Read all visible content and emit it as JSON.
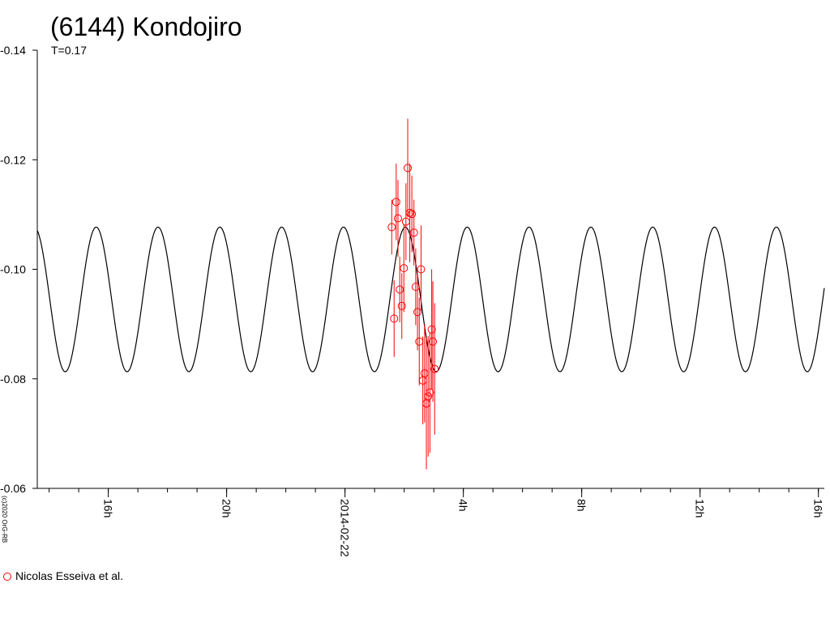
{
  "chart_data": {
    "type": "scatter",
    "title": "(6144) Kondojiro",
    "subtitle": "T=0.17",
    "copyright": "(c)2020 OrG-RB",
    "y_axis": {
      "range": [
        -0.06,
        -0.14
      ],
      "inverted": true,
      "ticks": [
        -0.14,
        -0.12,
        -0.1,
        -0.08,
        -0.06
      ],
      "tick_labels": [
        "-0.14",
        "-0.12",
        "-0.10",
        "-0.08",
        "-0.06"
      ]
    },
    "x_axis": {
      "unit": "hours relative to 2014-02-22 00:00",
      "range": [
        13.6,
        40.2
      ],
      "major_ticks": [
        16,
        20,
        24,
        28,
        32,
        36,
        40
      ],
      "major_labels": [
        "16h",
        "20h",
        "2014-02-22",
        "4h",
        "8h",
        "12h",
        "16h"
      ],
      "minor_step": 1
    },
    "model_curve": {
      "mean": -0.0945,
      "amplitude": 0.0132,
      "period_hours": 2.09,
      "phase_peak_hour": 26.04,
      "x_range": [
        13.6,
        40.2
      ]
    },
    "series": [
      {
        "name": "Nicolas Esseiva et al.",
        "color": "#ff0000",
        "points": [
          {
            "x": 25.58,
            "y": -0.1077,
            "err": 0.005
          },
          {
            "x": 25.66,
            "y": -0.091,
            "err": 0.007
          },
          {
            "x": 25.73,
            "y": -0.1123,
            "err": 0.007
          },
          {
            "x": 25.79,
            "y": -0.1093,
            "err": 0.007
          },
          {
            "x": 25.85,
            "y": -0.0963,
            "err": 0.006
          },
          {
            "x": 25.92,
            "y": -0.0933,
            "err": 0.006
          },
          {
            "x": 25.99,
            "y": -0.1002,
            "err": 0.008
          },
          {
            "x": 26.06,
            "y": -0.1087,
            "err": 0.007
          },
          {
            "x": 26.12,
            "y": -0.1185,
            "err": 0.009
          },
          {
            "x": 26.19,
            "y": -0.1103,
            "err": 0.009
          },
          {
            "x": 26.26,
            "y": -0.1101,
            "err": 0.007
          },
          {
            "x": 26.33,
            "y": -0.1067,
            "err": 0.006
          },
          {
            "x": 26.39,
            "y": -0.0968,
            "err": 0.007
          },
          {
            "x": 26.45,
            "y": -0.0922,
            "err": 0.007
          },
          {
            "x": 26.51,
            "y": -0.0868,
            "err": 0.008
          },
          {
            "x": 26.57,
            "y": -0.1,
            "err": 0.008
          },
          {
            "x": 26.63,
            "y": -0.0797,
            "err": 0.008
          },
          {
            "x": 26.69,
            "y": -0.081,
            "err": 0.009
          },
          {
            "x": 26.75,
            "y": -0.0755,
            "err": 0.012
          },
          {
            "x": 26.81,
            "y": -0.0768,
            "err": 0.011
          },
          {
            "x": 26.87,
            "y": -0.0775,
            "err": 0.011
          },
          {
            "x": 26.93,
            "y": -0.089,
            "err": 0.011
          },
          {
            "x": 26.97,
            "y": -0.0868,
            "err": 0.011
          },
          {
            "x": 27.03,
            "y": -0.0818,
            "err": 0.012
          }
        ]
      }
    ]
  }
}
